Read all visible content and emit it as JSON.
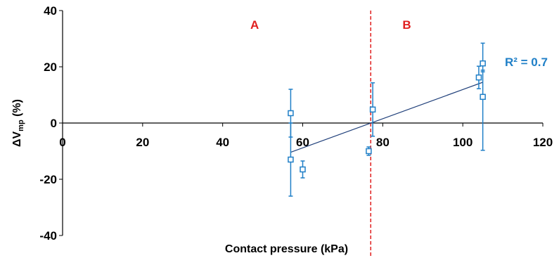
{
  "chart_data": {
    "type": "scatter",
    "xlabel": "Contact pressure (kPa)",
    "ylabel": {
      "main": "ΔV",
      "subscript": "mp",
      "unit": "(%)"
    },
    "xlim": [
      0,
      120
    ],
    "ylim": [
      -40,
      40
    ],
    "x_ticks": [
      "0",
      "20",
      "40",
      "60",
      "80",
      "100",
      "120"
    ],
    "y_ticks": [
      "-40",
      "-20",
      "0",
      "20",
      "40"
    ],
    "grid": false,
    "colors": {
      "points": "#1f7fc7",
      "trendline": "#1f3f7a",
      "divider": "#e01e1e",
      "axes": "#000000"
    },
    "region_labels": [
      {
        "text": "A",
        "x": 48
      },
      {
        "text": "B",
        "x": 86
      }
    ],
    "divider_x": 77,
    "points": [
      {
        "x": 57,
        "y": 3.5,
        "err_up": 8.5,
        "err_down": 8.5
      },
      {
        "x": 57,
        "y": -13,
        "err_up": 13,
        "err_down": 13
      },
      {
        "x": 60,
        "y": -16.5,
        "err_up": 3,
        "err_down": 3
      },
      {
        "x": 76.5,
        "y": -10,
        "err_up": 1.5,
        "err_down": 1.5
      },
      {
        "x": 77.5,
        "y": 4.8,
        "err_up": 9.5,
        "err_down": 9.5
      },
      {
        "x": 104,
        "y": 16.2,
        "err_up": 4,
        "err_down": 4
      },
      {
        "x": 105,
        "y": 21.2,
        "err_up": 7.2,
        "err_down": 3
      },
      {
        "x": 105,
        "y": 9.3,
        "err_up": 9.5,
        "err_down": 19
      }
    ],
    "trendline": {
      "x": [
        57,
        105
      ],
      "y": [
        -10.4,
        14.5
      ]
    },
    "annotation": "R² = 0.7"
  }
}
